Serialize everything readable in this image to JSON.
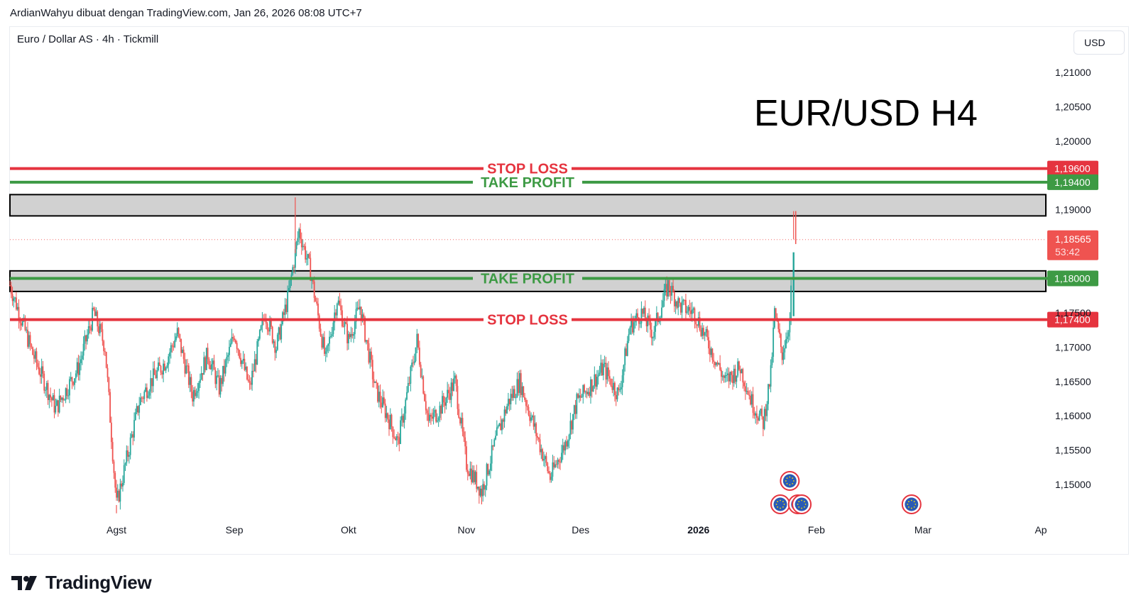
{
  "header": {
    "attribution": "ArdianWahyu dibuat dengan TradingView.com, Jan 26, 2026 08:08 UTC+7"
  },
  "symbol": {
    "title": "Euro / Dollar AS · 4h · Tickmill",
    "currency": "USD"
  },
  "brand": {
    "name": "TradingView"
  },
  "colors": {
    "stop_loss": "#e5343f",
    "take_profit": "#3d9a44",
    "zone": "#d1d1d1",
    "candle_up": "#26a69a",
    "candle_down": "#ef5350",
    "last_price": "#ef5350",
    "event_icon": "#2a5bb5"
  },
  "chart_data": {
    "type": "candlestick",
    "title": "EUR/USD H4",
    "ylim": [
      1.1445,
      1.2125
    ],
    "y_ticks": [
      {
        "value": 1.21,
        "label": "1,21000"
      },
      {
        "value": 1.205,
        "label": "1,20500"
      },
      {
        "value": 1.2,
        "label": "1,20000"
      },
      {
        "value": 1.19,
        "label": "1,19000"
      },
      {
        "value": 1.175,
        "label": "1,17500"
      },
      {
        "value": 1.17,
        "label": "1,17000"
      },
      {
        "value": 1.165,
        "label": "1,16500"
      },
      {
        "value": 1.16,
        "label": "1,16000"
      },
      {
        "value": 1.155,
        "label": "1,15500"
      },
      {
        "value": 1.15,
        "label": "1,15000"
      }
    ],
    "x_ticks": [
      {
        "date": "2025-08-01",
        "label": "Agst"
      },
      {
        "date": "2025-09-01",
        "label": "Sep"
      },
      {
        "date": "2025-10-01",
        "label": "Okt"
      },
      {
        "date": "2025-11-01",
        "label": "Nov"
      },
      {
        "date": "2025-12-01",
        "label": "Des"
      },
      {
        "date": "2026-01-01",
        "label": "2026"
      },
      {
        "date": "2026-02-01",
        "label": "Feb"
      },
      {
        "date": "2026-03-01",
        "label": "Mar"
      },
      {
        "date": "2026-04-01",
        "label": "Ap"
      }
    ],
    "x_range": [
      "2025-07-04",
      "2026-04-01"
    ],
    "levels": [
      {
        "name": "STOP LOSS",
        "price": 1.196,
        "label": "1,19600",
        "kind": "stop_loss"
      },
      {
        "name": "TAKE PROFIT",
        "price": 1.194,
        "label": "1,19400",
        "kind": "take_profit"
      },
      {
        "name": "TAKE PROFIT",
        "price": 1.18,
        "label": "1,18000",
        "kind": "take_profit"
      },
      {
        "name": "STOP LOSS",
        "price": 1.174,
        "label": "1,17400",
        "kind": "stop_loss"
      }
    ],
    "zones": [
      {
        "top": 1.1922,
        "bottom": 1.1891
      },
      {
        "top": 1.1811,
        "bottom": 1.1781
      }
    ],
    "last_price": {
      "price": 1.18565,
      "label": "1,18565",
      "countdown": "53:42"
    },
    "price_path": [
      [
        "2025-07-04",
        1.179
      ],
      [
        "2025-07-10",
        1.169
      ],
      [
        "2025-07-16",
        1.161
      ],
      [
        "2025-07-22",
        1.167
      ],
      [
        "2025-07-26",
        1.175
      ],
      [
        "2025-07-29",
        1.17
      ],
      [
        "2025-08-01",
        1.147
      ],
      [
        "2025-08-03",
        1.152
      ],
      [
        "2025-08-07",
        1.162
      ],
      [
        "2025-08-10",
        1.165
      ],
      [
        "2025-08-14",
        1.168
      ],
      [
        "2025-08-17",
        1.172
      ],
      [
        "2025-08-21",
        1.163
      ],
      [
        "2025-08-25",
        1.169
      ],
      [
        "2025-08-28",
        1.164
      ],
      [
        "2025-09-01",
        1.172
      ],
      [
        "2025-09-05",
        1.164
      ],
      [
        "2025-09-09",
        1.175
      ],
      [
        "2025-09-12",
        1.17
      ],
      [
        "2025-09-15",
        1.177
      ],
      [
        "2025-09-18",
        1.187
      ],
      [
        "2025-09-21",
        1.181
      ],
      [
        "2025-09-25",
        1.168
      ],
      [
        "2025-09-28",
        1.177
      ],
      [
        "2025-10-01",
        1.171
      ],
      [
        "2025-10-04",
        1.176
      ],
      [
        "2025-10-08",
        1.164
      ],
      [
        "2025-10-12",
        1.159
      ],
      [
        "2025-10-14",
        1.156
      ],
      [
        "2025-10-19",
        1.171
      ],
      [
        "2025-10-22",
        1.159
      ],
      [
        "2025-10-25",
        1.161
      ],
      [
        "2025-10-29",
        1.165
      ],
      [
        "2025-11-01",
        1.153
      ],
      [
        "2025-11-05",
        1.149
      ],
      [
        "2025-11-09",
        1.157
      ],
      [
        "2025-11-12",
        1.162
      ],
      [
        "2025-11-15",
        1.165
      ],
      [
        "2025-11-19",
        1.158
      ],
      [
        "2025-11-23",
        1.151
      ],
      [
        "2025-11-27",
        1.156
      ],
      [
        "2025-11-30",
        1.162
      ],
      [
        "2025-12-03",
        1.164
      ],
      [
        "2025-12-07",
        1.167
      ],
      [
        "2025-12-11",
        1.163
      ],
      [
        "2025-12-14",
        1.173
      ],
      [
        "2025-12-17",
        1.175
      ],
      [
        "2025-12-20",
        1.172
      ],
      [
        "2025-12-24",
        1.179
      ],
      [
        "2025-12-27",
        1.176
      ],
      [
        "2025-12-31",
        1.175
      ],
      [
        "2026-01-04",
        1.17
      ],
      [
        "2026-01-08",
        1.165
      ],
      [
        "2026-01-12",
        1.167
      ],
      [
        "2026-01-15",
        1.162
      ],
      [
        "2026-01-18",
        1.159
      ],
      [
        "2026-01-20",
        1.166
      ],
      [
        "2026-01-21",
        1.175
      ],
      [
        "2026-01-23",
        1.169
      ],
      [
        "2026-01-25",
        1.174
      ],
      [
        "2026-01-26",
        1.1857
      ]
    ],
    "wicks": [
      {
        "date": "2025-09-17",
        "high": 1.1918
      },
      {
        "date": "2025-08-01",
        "low": 1.1458
      },
      {
        "date": "2025-11-05",
        "low": 1.1471
      },
      {
        "date": "2026-01-26",
        "high": 1.1898
      }
    ],
    "events": [
      {
        "date": "2026-01-24",
        "row": 1
      },
      {
        "date": "2026-01-26",
        "row": 2
      },
      {
        "date": "2026-01-27",
        "row": 2
      },
      {
        "date": "2026-01-25",
        "row": 0
      },
      {
        "date": "2026-02-26",
        "row": 0
      }
    ]
  }
}
